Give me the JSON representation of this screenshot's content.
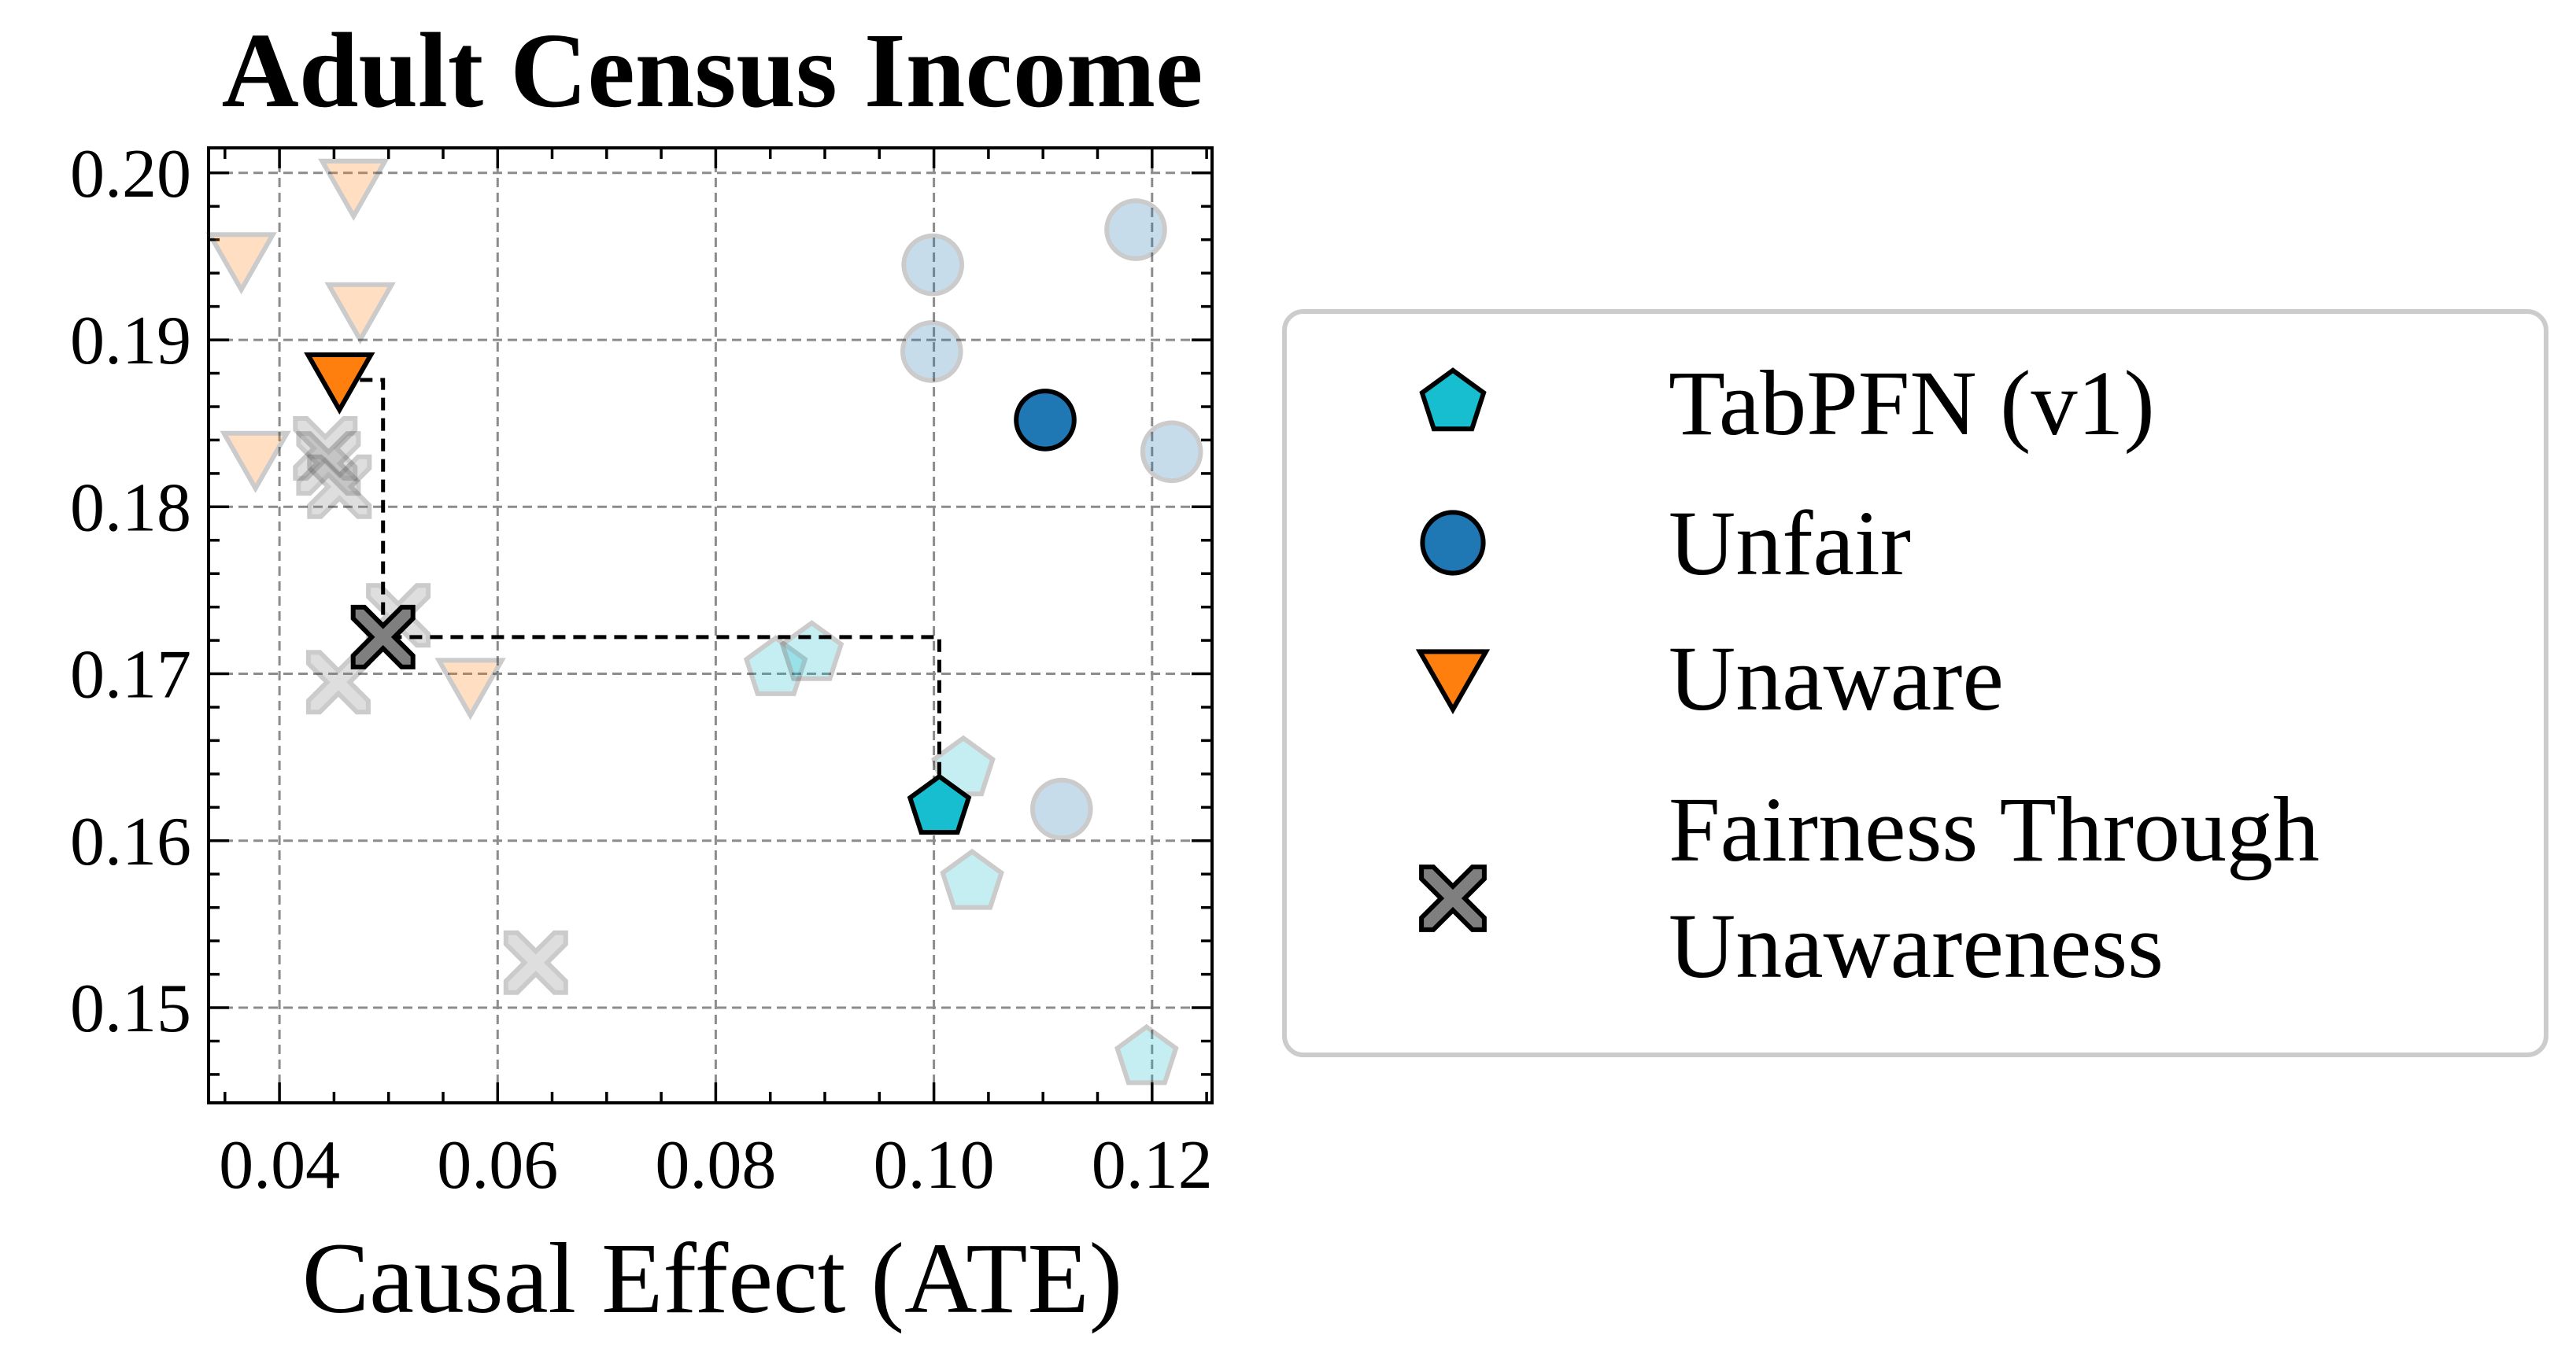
{
  "chart_data": {
    "type": "scatter",
    "title": "Adult Census Income",
    "xlabel": "Causal Effect (ATE)",
    "ylabel": "",
    "xlim": [
      0.0335,
      0.1255
    ],
    "ylim": [
      0.1443,
      0.2015
    ],
    "x_ticks": [
      0.04,
      0.06,
      0.08,
      0.1,
      0.12
    ],
    "x_tick_labels": [
      "0.04",
      "0.06",
      "0.08",
      "0.10",
      "0.12"
    ],
    "y_ticks": [
      0.15,
      0.16,
      0.17,
      0.18,
      0.19,
      0.2
    ],
    "y_tick_labels": [
      "0.15",
      "0.16",
      "0.17",
      "0.18",
      "0.19",
      "0.20"
    ],
    "grid": true,
    "legend_position": "right",
    "series": [
      {
        "name": "TabPFN (v1)",
        "marker": "pentagon",
        "color": "#17becf",
        "highlight": {
          "x": 0.1005,
          "y": 0.162
        },
        "points": [
          {
            "x": 0.0855,
            "y": 0.1703
          },
          {
            "x": 0.0888,
            "y": 0.1712
          },
          {
            "x": 0.1027,
            "y": 0.1643
          },
          {
            "x": 0.1035,
            "y": 0.1575
          },
          {
            "x": 0.1195,
            "y": 0.147
          }
        ]
      },
      {
        "name": "Unfair",
        "marker": "circle",
        "color": "#1f77b4",
        "highlight": {
          "x": 0.1102,
          "y": 0.1852
        },
        "points": [
          {
            "x": 0.0999,
            "y": 0.1945
          },
          {
            "x": 0.0998,
            "y": 0.1893
          },
          {
            "x": 0.1185,
            "y": 0.1966
          },
          {
            "x": 0.1218,
            "y": 0.1833
          },
          {
            "x": 0.1117,
            "y": 0.1619
          }
        ]
      },
      {
        "name": "Unaware",
        "marker": "triangle-down",
        "color": "#ff7f0e",
        "highlight": {
          "x": 0.0455,
          "y": 0.1876
        },
        "points": [
          {
            "x": 0.0468,
            "y": 0.1992
          },
          {
            "x": 0.0365,
            "y": 0.1948
          },
          {
            "x": 0.0474,
            "y": 0.1918
          },
          {
            "x": 0.0378,
            "y": 0.1829
          },
          {
            "x": 0.0575,
            "y": 0.1693
          }
        ]
      },
      {
        "name": "Fairness Through Unawareness",
        "marker": "x-filled",
        "color": "#7f7f7f",
        "highlight": {
          "x": 0.0495,
          "y": 0.1722
        },
        "points": [
          {
            "x": 0.0442,
            "y": 0.1835
          },
          {
            "x": 0.0445,
            "y": 0.1826
          },
          {
            "x": 0.0455,
            "y": 0.1812
          },
          {
            "x": 0.0509,
            "y": 0.1735
          },
          {
            "x": 0.0454,
            "y": 0.1695
          },
          {
            "x": 0.0635,
            "y": 0.1527
          }
        ]
      }
    ],
    "pareto_front": [
      {
        "x": 0.0455,
        "y": 0.1876
      },
      {
        "x": 0.0495,
        "y": 0.1722
      },
      {
        "x": 0.1005,
        "y": 0.162
      }
    ],
    "legend": {
      "entries": [
        {
          "label": "TabPFN (v1)",
          "marker": "pentagon",
          "color": "#17becf"
        },
        {
          "label": "Unfair",
          "marker": "circle",
          "color": "#1f77b4"
        },
        {
          "label": "Unaware",
          "marker": "triangle-down",
          "color": "#ff7f0e"
        },
        {
          "label_lines": [
            "Fairness Through",
            "Unawareness"
          ],
          "marker": "x-filled",
          "color": "#7f7f7f"
        }
      ]
    }
  }
}
